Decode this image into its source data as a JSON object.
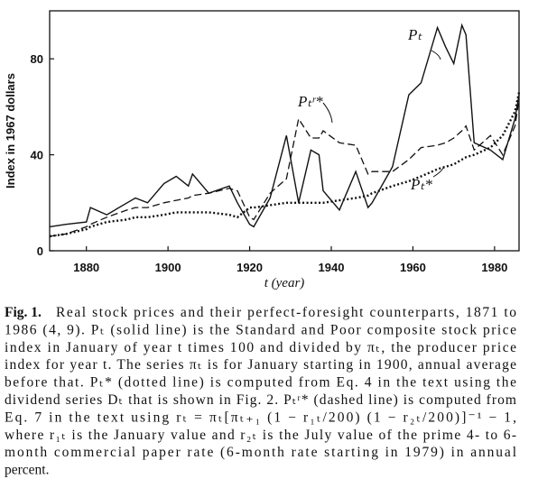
{
  "chart_data": {
    "type": "line",
    "x_label": "t (year)",
    "y_label": "Index in 1967 dollars",
    "xlim": [
      1871,
      1986
    ],
    "ylim": [
      0,
      100
    ],
    "xticks": [
      1880,
      1900,
      1920,
      1940,
      1960,
      1980
    ],
    "yticks": [
      0,
      40,
      80
    ],
    "x": [
      1871,
      1875,
      1880,
      1881,
      1885,
      1890,
      1892,
      1895,
      1899,
      1902,
      1905,
      1906,
      1910,
      1915,
      1917,
      1920,
      1921,
      1925,
      1929,
      1932,
      1935,
      1937,
      1938,
      1942,
      1946,
      1949,
      1950,
      1955,
      1959,
      1962,
      1966,
      1968,
      1970,
      1972,
      1973,
      1975,
      1979,
      1982,
      1985,
      1986
    ],
    "series": [
      {
        "name": "Pₜ",
        "style": "solid",
        "color": "#111111",
        "values": [
          10,
          11,
          12,
          18,
          15,
          20,
          22,
          20,
          28,
          31,
          27,
          32,
          24,
          27,
          20,
          11,
          10,
          22,
          48,
          20,
          42,
          40,
          25,
          17,
          33,
          18,
          20,
          35,
          65,
          70,
          93,
          85,
          78,
          94,
          90,
          45,
          42,
          38,
          55,
          65
        ]
      },
      {
        "name": "Pₜʳ*",
        "style": "dashed",
        "color": "#111111",
        "values": [
          6,
          7,
          10,
          11,
          14,
          17,
          18,
          18,
          20,
          21,
          22,
          23,
          24,
          26,
          25,
          14,
          13,
          24,
          30,
          55,
          47,
          47,
          50,
          45,
          44,
          32,
          33,
          33,
          38,
          43,
          44,
          45,
          47,
          50,
          52,
          42,
          48,
          40,
          52,
          63
        ]
      },
      {
        "name": "Pₜ*",
        "style": "dotted",
        "color": "#111111",
        "values": [
          6,
          7,
          9,
          10,
          12,
          13,
          14,
          14,
          15,
          16,
          16,
          16,
          16,
          15,
          14,
          18,
          18,
          19,
          20,
          20,
          20,
          20,
          20,
          21,
          22,
          23,
          24,
          27,
          29,
          31,
          34,
          35,
          36,
          38,
          39,
          40,
          43,
          48,
          58,
          66
        ]
      }
    ]
  },
  "caption": {
    "label": "Fig. 1.",
    "lines": [
      "Real stock prices and their perfect-foresight counterparts, 1871 to",
      "1986 (4, 9). Pₜ (solid line) is the Standard and Poor composite stock price",
      "index in January of year t times 100 and divided by πₜ, the producer price",
      "index for year t. The series πₜ is for January starting in 1900, annual average",
      "before that. Pₜ* (dotted line) is computed from Eq. 4 in the text using the",
      "dividend series Dₜ that is shown in Fig. 2. Pₜʳ* (dashed line) is computed from",
      "Eq. 7 in the text using rₜ = πₜ[πₜ₊₁ (1 − r₁ₜ/200) (1 − r₂ₜ/200)]⁻¹ − 1,",
      "where r₁ₜ is the January value and r₂ₜ is the July value of the prime 4- to 6-",
      "month commercial paper rate (6-month rate starting in 1979) in annual",
      "percent."
    ]
  }
}
